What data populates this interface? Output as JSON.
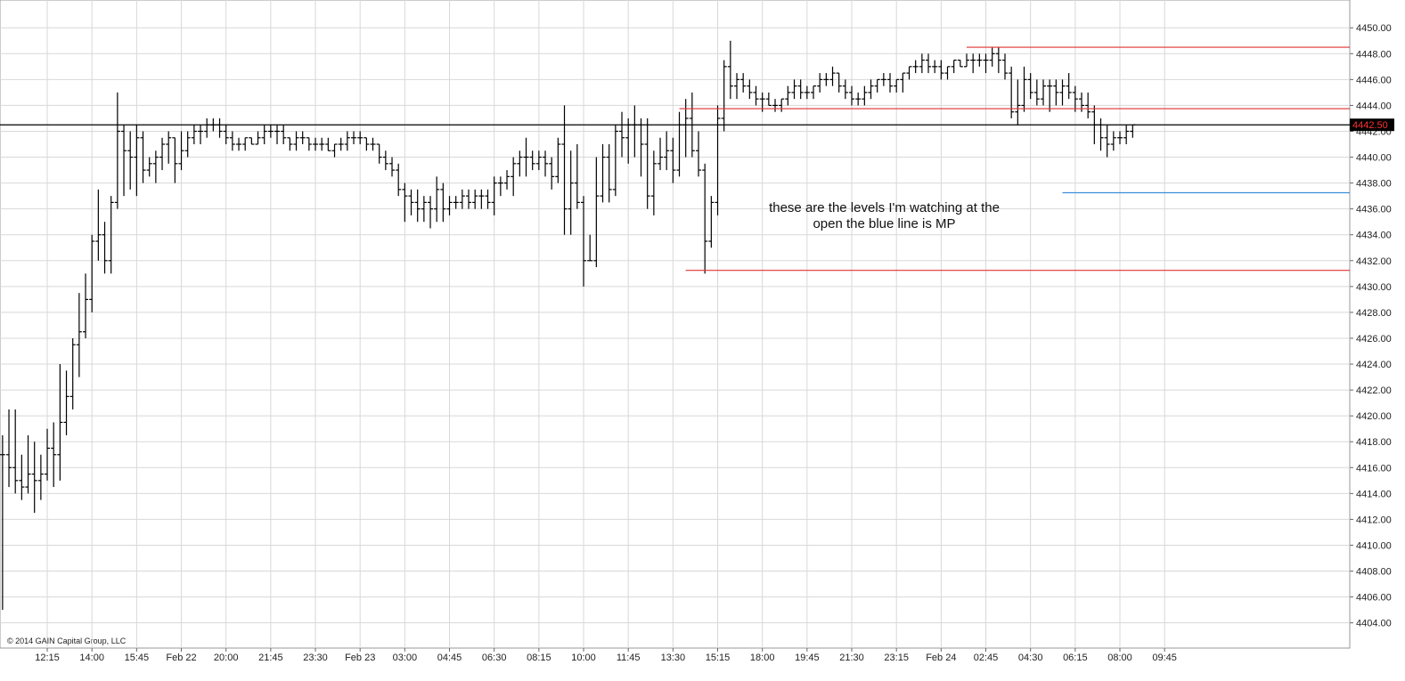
{
  "chart_data": {
    "type": "ohlc",
    "color": "#000000",
    "bars": [
      [
        4417,
        4418.5,
        4405,
        4417
      ],
      [
        4417,
        4420.5,
        4414.5,
        4416
      ],
      [
        4416,
        4420.5,
        4414,
        4415
      ],
      [
        4415,
        4417,
        4413.5,
        4414.5
      ],
      [
        4414.5,
        4418.5,
        4414,
        4415.5
      ],
      [
        4415.5,
        4418,
        4412.5,
        4415
      ],
      [
        4415,
        4417,
        4413.5,
        4415.5
      ],
      [
        4415.5,
        4419,
        4415,
        4417.5
      ],
      [
        4417.5,
        4419.5,
        4414.5,
        4417
      ],
      [
        4417,
        4424,
        4415,
        4419.5
      ],
      [
        4419.5,
        4423.5,
        4418.5,
        4421.5
      ],
      [
        4421.5,
        4426,
        4420.5,
        4425.5
      ],
      [
        4425.5,
        4429.5,
        4423,
        4426.5
      ],
      [
        4426.5,
        4431,
        4426,
        4429
      ],
      [
        4429,
        4434,
        4428,
        4433.5
      ],
      [
        4433.5,
        4437.5,
        4432,
        4434
      ],
      [
        4434,
        4435,
        4431,
        4432
      ],
      [
        4432,
        4437,
        4431,
        4436.5
      ],
      [
        4436.5,
        4445,
        4436,
        4442
      ],
      [
        4442,
        4442.5,
        4437,
        4440.5
      ],
      [
        4440.5,
        4442,
        4437.5,
        4440
      ],
      [
        4440,
        4442.5,
        4437,
        4441.5
      ],
      [
        4441.5,
        4442,
        4438,
        4439
      ],
      [
        4439,
        4440,
        4438.5,
        4439.5
      ],
      [
        4439.5,
        4440.5,
        4438,
        4440
      ],
      [
        4440,
        4441.5,
        4439,
        4441
      ],
      [
        4441,
        4442,
        4439.5,
        4441.5
      ],
      [
        4441.5,
        4441.5,
        4438,
        4439.5
      ],
      [
        4439.5,
        4442,
        4439,
        4440.5
      ],
      [
        4440.5,
        4442,
        4440,
        4441.5
      ],
      [
        4441.5,
        4442.5,
        4441,
        4442
      ],
      [
        4442,
        4442.5,
        4441,
        4442
      ],
      [
        4442,
        4443,
        4441.5,
        4442.5
      ],
      [
        4442.5,
        4443,
        4442,
        4442.5
      ],
      [
        4442.5,
        4443,
        4441.5,
        4442
      ],
      [
        4442,
        4442.5,
        4441,
        4441.5
      ],
      [
        4441.5,
        4442,
        4440.5,
        4441
      ],
      [
        4441,
        4441.5,
        4440.5,
        4441
      ],
      [
        4441,
        4441.5,
        4440.5,
        4441.5
      ],
      [
        4441.5,
        4441.5,
        4441,
        4441
      ],
      [
        4441,
        4442,
        4441,
        4441.5
      ],
      [
        4441.5,
        4442.5,
        4441,
        4442
      ],
      [
        4442,
        4442.5,
        4441.5,
        4442
      ],
      [
        4442,
        4442.5,
        4441,
        4442
      ],
      [
        4442,
        4442.5,
        4441,
        4441.5
      ],
      [
        4441.5,
        4441.5,
        4440.5,
        4441
      ],
      [
        4441,
        4442,
        4440.5,
        4441.5
      ],
      [
        4441.5,
        4442,
        4441,
        4441.5
      ],
      [
        4441.5,
        4441.5,
        4440.5,
        4441
      ],
      [
        4441,
        4441.5,
        4440.5,
        4441
      ],
      [
        4441,
        4441.5,
        4440.5,
        4441
      ],
      [
        4441,
        4441.5,
        4440.5,
        4440.5
      ],
      [
        4440.5,
        4441,
        4440,
        4441
      ],
      [
        4441,
        4441.5,
        4440.5,
        4441
      ],
      [
        4441,
        4442,
        4440.5,
        4441.5
      ],
      [
        4441.5,
        4442,
        4441,
        4441.5
      ],
      [
        4441.5,
        4442,
        4441,
        4441.5
      ],
      [
        4441.5,
        4441.5,
        4440.5,
        4441
      ],
      [
        4441,
        4441.5,
        4440.5,
        4441
      ],
      [
        4441,
        4441,
        4439.5,
        4440
      ],
      [
        4440,
        4440.5,
        4439,
        4439.5
      ],
      [
        4439.5,
        4440,
        4438.5,
        4439
      ],
      [
        4439,
        4439.5,
        4437,
        4437.5
      ],
      [
        4437.5,
        4438,
        4435,
        4437
      ],
      [
        4437,
        4437.5,
        4435.5,
        4436.5
      ],
      [
        4436.5,
        4437.5,
        4435,
        4436
      ],
      [
        4436,
        4437,
        4435,
        4436.5
      ],
      [
        4436.5,
        4437,
        4434.5,
        4436
      ],
      [
        4436,
        4438.5,
        4435,
        4437.5
      ],
      [
        4437.5,
        4438,
        4435,
        4436
      ],
      [
        4436,
        4437,
        4435.5,
        4436.5
      ],
      [
        4436.5,
        4437,
        4436,
        4436.5
      ],
      [
        4436.5,
        4437.5,
        4436,
        4437
      ],
      [
        4437,
        4437.5,
        4436,
        4436.5
      ],
      [
        4436.5,
        4437.5,
        4436,
        4437
      ],
      [
        4437,
        4437.5,
        4436,
        4437
      ],
      [
        4437,
        4437.5,
        4436,
        4436.5
      ],
      [
        4436.5,
        4438.5,
        4435.5,
        4438
      ],
      [
        4438,
        4438.5,
        4437,
        4438
      ],
      [
        4438,
        4439,
        4437.5,
        4438.5
      ],
      [
        4438.5,
        4440,
        4437,
        4439.5
      ],
      [
        4439.5,
        4440.5,
        4438.5,
        4440
      ],
      [
        4440,
        4441.5,
        4438.5,
        4440
      ],
      [
        4440,
        4440.5,
        4439,
        4439.5
      ],
      [
        4439.5,
        4440.5,
        4439,
        4440
      ],
      [
        4440,
        4440.5,
        4438.5,
        4439.5
      ],
      [
        4439.5,
        4440,
        4437.5,
        4438.5
      ],
      [
        4438.5,
        4441.5,
        4438,
        4441
      ],
      [
        4441,
        4444,
        4434,
        4436
      ],
      [
        4436,
        4440.5,
        4434,
        4438
      ],
      [
        4438,
        4441,
        4436,
        4436.5
      ],
      [
        4436.5,
        4437,
        4430,
        4432
      ],
      [
        4432,
        4434,
        4432,
        4432
      ],
      [
        4432,
        4440,
        4431.5,
        4437
      ],
      [
        4437,
        4441,
        4436.5,
        4440
      ],
      [
        4440,
        4441,
        4436.5,
        4437.5
      ],
      [
        4437.5,
        4442.5,
        4437,
        4442
      ],
      [
        4442,
        4443.5,
        4440,
        4441.5
      ],
      [
        4441.5,
        4443,
        4439.5,
        4442.5
      ],
      [
        4442.5,
        4444,
        4440,
        4442.5
      ],
      [
        4442.5,
        4443,
        4438.5,
        4441
      ],
      [
        4441,
        4443,
        4436,
        4437
      ],
      [
        4437,
        4440.5,
        4435.5,
        4439.5
      ],
      [
        4439.5,
        4441.5,
        4439,
        4440
      ],
      [
        4440,
        4442,
        4439,
        4440.5
      ],
      [
        4440.5,
        4441.5,
        4438,
        4439
      ],
      [
        4439,
        4443.5,
        4438.5,
        4442.5
      ],
      [
        4442.5,
        4444.5,
        4440,
        4443
      ],
      [
        4443,
        4445,
        4440,
        4440.5
      ],
      [
        4440.5,
        4442,
        4438.5,
        4439
      ],
      [
        4439,
        4439.5,
        4431,
        4433.5
      ],
      [
        4433.5,
        4437,
        4433,
        4436.5
      ],
      [
        4436.5,
        4444,
        4435.5,
        4443
      ],
      [
        4443,
        4447.5,
        4442,
        4447
      ],
      [
        4447,
        4449,
        4444.5,
        4445.5
      ],
      [
        4445.5,
        4446.5,
        4444.5,
        4446
      ],
      [
        4446,
        4446.5,
        4445,
        4445.5
      ],
      [
        4445.5,
        4446,
        4444.5,
        4445
      ],
      [
        4445,
        4445.5,
        4444,
        4444.5
      ],
      [
        4444.5,
        4445,
        4443.5,
        4444.5
      ],
      [
        4444.5,
        4445,
        4444,
        4444
      ],
      [
        4444,
        4444.5,
        4443.5,
        4444
      ],
      [
        4444,
        4444.5,
        4443.5,
        4444.5
      ],
      [
        4444.5,
        4445.5,
        4444,
        4445
      ],
      [
        4445,
        4446,
        4444.5,
        4445.5
      ],
      [
        4445.5,
        4446,
        4444.5,
        4445
      ],
      [
        4445,
        4445.5,
        4444.5,
        4445
      ],
      [
        4445,
        4445.5,
        4444.5,
        4445.5
      ],
      [
        4445.5,
        4446.5,
        4445,
        4446
      ],
      [
        4446,
        4446.5,
        4445.5,
        4446
      ],
      [
        4446,
        4447,
        4445.5,
        4446.5
      ],
      [
        4446.5,
        4446.5,
        4445,
        4445.5
      ],
      [
        4445.5,
        4446,
        4444.5,
        4445
      ],
      [
        4445,
        4445.5,
        4444,
        4444.5
      ],
      [
        4444.5,
        4445,
        4444,
        4444.5
      ],
      [
        4444.5,
        4445.5,
        4444,
        4445
      ],
      [
        4445,
        4446,
        4444.5,
        4445.5
      ],
      [
        4445.5,
        4446,
        4445,
        4446
      ],
      [
        4446,
        4446.5,
        4445.5,
        4446
      ],
      [
        4446,
        4446.5,
        4445,
        4445.5
      ],
      [
        4445.5,
        4446,
        4445,
        4446
      ],
      [
        4446,
        4446.5,
        4445,
        4446.5
      ],
      [
        4446.5,
        4447,
        4446,
        4447
      ],
      [
        4447,
        4447.5,
        4446.5,
        4447
      ],
      [
        4447,
        4448,
        4446.5,
        4447.5
      ],
      [
        4447.5,
        4448,
        4446.5,
        4447
      ],
      [
        4447,
        4447.5,
        4446.5,
        4447
      ],
      [
        4447,
        4447.5,
        4446,
        4446.5
      ],
      [
        4446.5,
        4447,
        4446,
        4447
      ],
      [
        4447,
        4447.5,
        4446.5,
        4447.5
      ],
      [
        4447.5,
        4447.5,
        4447,
        4447
      ],
      [
        4447,
        4448,
        4447,
        4447.5
      ],
      [
        4447.5,
        4448,
        4446.5,
        4447.5
      ],
      [
        4447.5,
        4448,
        4447,
        4447.5
      ],
      [
        4447.5,
        4448,
        4446.5,
        4447.5
      ],
      [
        4447.5,
        4448.5,
        4447,
        4448
      ],
      [
        4448,
        4448.5,
        4446.5,
        4447.5
      ],
      [
        4447.5,
        4448,
        4446,
        4446.5
      ],
      [
        4446.5,
        4447,
        4443,
        4443.5
      ],
      [
        4443.5,
        4446,
        4442.5,
        4444
      ],
      [
        4444,
        4447,
        4443.5,
        4446
      ],
      [
        4446,
        4446.5,
        4444.5,
        4445
      ],
      [
        4445,
        4446,
        4444,
        4444.5
      ],
      [
        4444.5,
        4446,
        4444,
        4445.5
      ],
      [
        4445.5,
        4446,
        4443.5,
        4445.5
      ],
      [
        4445.5,
        4446,
        4444,
        4445
      ],
      [
        4445,
        4446,
        4444,
        4445.5
      ],
      [
        4445.5,
        4446.5,
        4444.5,
        4445
      ],
      [
        4445,
        4445.5,
        4443.5,
        4444.5
      ],
      [
        4444.5,
        4445,
        4443.5,
        4444
      ],
      [
        4444,
        4445,
        4443,
        4443.5
      ],
      [
        4443.5,
        4444,
        4441,
        4442.5
      ],
      [
        4442.5,
        4443,
        4440.5,
        4441.5
      ],
      [
        4441.5,
        4442.5,
        4440,
        4441
      ],
      [
        4441,
        4442,
        4440.5,
        4441.5
      ],
      [
        4441.5,
        4442,
        4441,
        4441.5
      ],
      [
        4441.5,
        4442.5,
        4441,
        4442
      ],
      [
        4442,
        4442.5,
        4441.5,
        4442.5
      ]
    ],
    "xlim": [
      -0.4,
      211
    ],
    "xticks": [
      {
        "value": 7,
        "label": "12:15"
      },
      {
        "value": 14,
        "label": "14:00"
      },
      {
        "value": 21,
        "label": "15:45"
      },
      {
        "value": 28,
        "label": "Feb 22"
      },
      {
        "value": 35,
        "label": "20:00"
      },
      {
        "value": 42,
        "label": "21:45"
      },
      {
        "value": 49,
        "label": "23:30"
      },
      {
        "value": 56,
        "label": "Feb 23"
      },
      {
        "value": 63,
        "label": "03:00"
      },
      {
        "value": 70,
        "label": "04:45"
      },
      {
        "value": 77,
        "label": "06:30"
      },
      {
        "value": 84,
        "label": "08:15"
      },
      {
        "value": 91,
        "label": "10:00"
      },
      {
        "value": 98,
        "label": "11:45"
      },
      {
        "value": 105,
        "label": "13:30"
      },
      {
        "value": 112,
        "label": "15:15"
      },
      {
        "value": 119,
        "label": "18:00"
      },
      {
        "value": 126,
        "label": "19:45"
      },
      {
        "value": 133,
        "label": "21:30"
      },
      {
        "value": 140,
        "label": "23:15"
      },
      {
        "value": 147,
        "label": "Feb 24"
      },
      {
        "value": 154,
        "label": "02:45"
      },
      {
        "value": 161,
        "label": "04:30"
      },
      {
        "value": 168,
        "label": "06:15"
      },
      {
        "value": 175,
        "label": "08:00"
      },
      {
        "value": 182,
        "label": "09:45"
      }
    ],
    "ylim": [
      4402.05,
      4452.15
    ],
    "yticks": [
      {
        "value": 4404,
        "label": "4404.00"
      },
      {
        "value": 4406,
        "label": "4406.00"
      },
      {
        "value": 4408,
        "label": "4408.00"
      },
      {
        "value": 4410,
        "label": "4410.00"
      },
      {
        "value": 4412,
        "label": "4412.00"
      },
      {
        "value": 4414,
        "label": "4414.00"
      },
      {
        "value": 4416,
        "label": "4416.00"
      },
      {
        "value": 4418,
        "label": "4418.00"
      },
      {
        "value": 4420,
        "label": "4420.00"
      },
      {
        "value": 4422,
        "label": "4422.00"
      },
      {
        "value": 4424,
        "label": "4424.00"
      },
      {
        "value": 4426,
        "label": "4426.00"
      },
      {
        "value": 4428,
        "label": "4428.00"
      },
      {
        "value": 4430,
        "label": "4430.00"
      },
      {
        "value": 4432,
        "label": "4432.00"
      },
      {
        "value": 4434,
        "label": "4434.00"
      },
      {
        "value": 4436,
        "label": "4436.00"
      },
      {
        "value": 4438,
        "label": "4438.00"
      },
      {
        "value": 4440,
        "label": "4440.00"
      },
      {
        "value": 4442,
        "label": "4442.00"
      },
      {
        "value": 4444,
        "label": "4444.00"
      },
      {
        "value": 4446,
        "label": "4446.00"
      },
      {
        "value": 4448,
        "label": "4448.00"
      },
      {
        "value": 4450,
        "label": "4450.00"
      }
    ],
    "grid": true,
    "last_price": {
      "value": 4442.5,
      "label": "4442.50"
    },
    "levels": [
      {
        "value": 4448.5,
        "from": 151,
        "color": "#e03030"
      },
      {
        "value": 4443.75,
        "from": 106,
        "color": "#e03030"
      },
      {
        "value": 4431.25,
        "from": 107,
        "color": "#e03030"
      },
      {
        "value": 4437.25,
        "from": 166,
        "color": "#3a8fd8"
      }
    ],
    "annotation": "these are the levels I'm watching at the open the blue line is MP",
    "copyright": "© 2014 GAIN Capital Group, LLC"
  }
}
